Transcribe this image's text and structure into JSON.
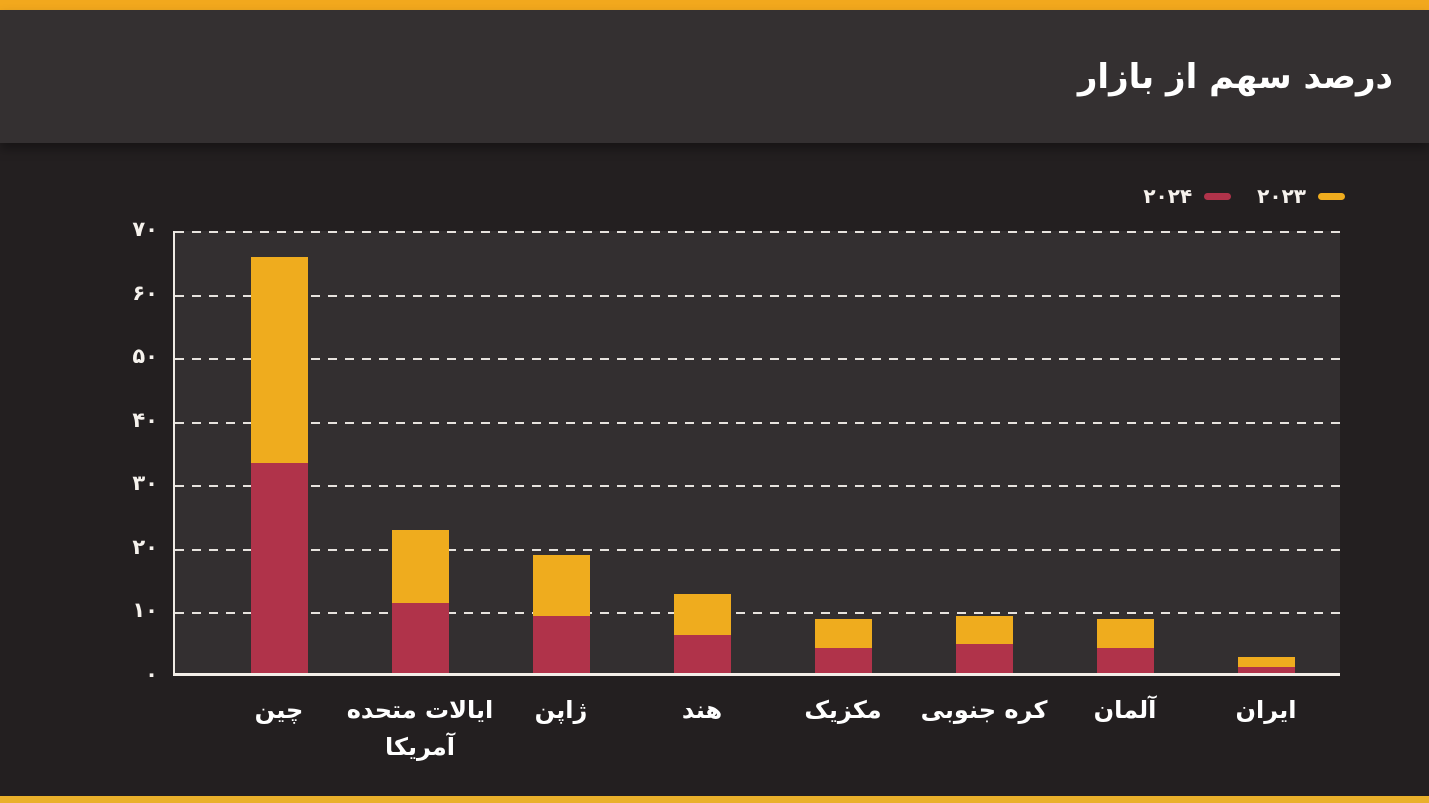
{
  "header": {
    "title": "درصد سهم از بازار"
  },
  "theme": {
    "page_bg": "#231F20",
    "header_bg": "#343031",
    "panel_bg": "#332F30",
    "top_strip": "#F2A81D",
    "bottom_strip": "#E9B02B",
    "accent_red": "#B0334A",
    "accent_yellow": "#EFAC1E",
    "axis_color": "#EFEAE4",
    "text_color": "#FFFFFF"
  },
  "legend": {
    "items": [
      {
        "label": "۲۰۲۴",
        "color": "#B0334A"
      },
      {
        "label": "۲۰۲۳",
        "color": "#EFAC1E"
      }
    ]
  },
  "chart_data": {
    "type": "bar",
    "stacked": true,
    "title": "درصد سهم از بازار",
    "xlabel": "",
    "ylabel": "",
    "ylim": [
      0,
      70
    ],
    "grid": "horizontal dashed",
    "legend_position": "top-right",
    "rtl": true,
    "categories": [
      "چین",
      "ایالات متحده\nآمریکا",
      "ژاپن",
      "هند",
      "مکزیک",
      "کره جنوبی",
      "آلمان",
      "ایران"
    ],
    "series": [
      {
        "name": "۲۰۲۴",
        "stack_position": "bottom",
        "color": "#B0334A",
        "values": [
          33,
          11,
          9,
          6,
          4,
          4.5,
          4,
          1
        ]
      },
      {
        "name": "۲۰۲۳",
        "stack_position": "top",
        "color": "#EFAC1E",
        "values": [
          32.5,
          11.5,
          9.5,
          6.5,
          4.5,
          4.5,
          4.5,
          1.5
        ]
      }
    ],
    "stack_totals": [
      65.5,
      22.5,
      18.5,
      12.5,
      8.5,
      9,
      8.5,
      2.5
    ],
    "yticks": [
      {
        "value": 0,
        "label": "۰"
      },
      {
        "value": 10,
        "label": "۱۰"
      },
      {
        "value": 20,
        "label": "۲۰"
      },
      {
        "value": 30,
        "label": "۳۰"
      },
      {
        "value": 40,
        "label": "۴۰"
      },
      {
        "value": 50,
        "label": "۵۰"
      },
      {
        "value": 60,
        "label": "۶۰"
      },
      {
        "value": 70,
        "label": "۷۰"
      }
    ]
  }
}
